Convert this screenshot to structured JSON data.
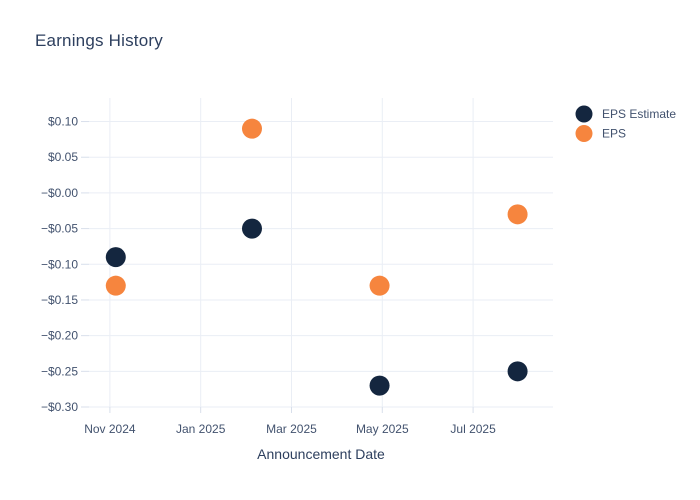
{
  "chart_title": "Earnings History",
  "legend": {
    "items": [
      {
        "label": "EPS Estimate",
        "color": "#14263f"
      },
      {
        "label": "EPS",
        "color": "#f6853e"
      }
    ]
  },
  "chart_data": {
    "type": "scatter",
    "title": "Earnings History",
    "xlabel": "Announcement Date",
    "ylabel": "",
    "grid": true,
    "legend_position": "outside-top-right",
    "background": "#ffffff",
    "grid_color": "#eaeef5",
    "tick_color": "#d8dfeb",
    "text_color": "#2d3f5e",
    "x_tick_labels": [
      "Nov 2024",
      "Jan 2025",
      "Mar 2025",
      "May 2025",
      "Jul 2025"
    ],
    "x_ticks": [
      {
        "month_offset": 0,
        "label": "Nov 2024"
      },
      {
        "month_offset": 2,
        "label": "Jan 2025"
      },
      {
        "month_offset": 4,
        "label": "Mar 2025"
      },
      {
        "month_offset": 6,
        "label": "May 2025"
      },
      {
        "month_offset": 8,
        "label": "Jul 2025"
      }
    ],
    "x_range_month_offsets": [
      -0.46,
      9.76
    ],
    "y_ticks": [
      {
        "value": 0.1,
        "label": "$0.10"
      },
      {
        "value": 0.05,
        "label": "$0.05"
      },
      {
        "value": 0.0,
        "label": "−$0.00"
      },
      {
        "value": -0.05,
        "label": "−$0.05"
      },
      {
        "value": -0.1,
        "label": "−$0.10"
      },
      {
        "value": -0.15,
        "label": "−$0.15"
      },
      {
        "value": -0.2,
        "label": "−$0.20"
      },
      {
        "value": -0.25,
        "label": "−$0.25"
      },
      {
        "value": -0.3,
        "label": "−$0.30"
      }
    ],
    "y_range": [
      -0.3,
      0.133
    ],
    "series": [
      {
        "name": "EPS Estimate",
        "color": "#14263f",
        "marker": "circle",
        "points": [
          {
            "date_approx": "Nov 2024",
            "month_offset": 0.13,
            "value": -0.09
          },
          {
            "date_approx": "Feb 2025",
            "month_offset": 3.13,
            "value": -0.05
          },
          {
            "date_approx": "May 2025",
            "month_offset": 5.94,
            "value": -0.27
          },
          {
            "date_approx": "Aug 2025",
            "month_offset": 8.98,
            "value": -0.25
          }
        ]
      },
      {
        "name": "EPS",
        "color": "#f6853e",
        "marker": "circle",
        "points": [
          {
            "date_approx": "Nov 2024",
            "month_offset": 0.13,
            "value": -0.13
          },
          {
            "date_approx": "Feb 2025",
            "month_offset": 3.13,
            "value": 0.09
          },
          {
            "date_approx": "May 2025",
            "month_offset": 5.94,
            "value": -0.13
          },
          {
            "date_approx": "Aug 2025",
            "month_offset": 8.98,
            "value": -0.03
          }
        ]
      }
    ]
  }
}
